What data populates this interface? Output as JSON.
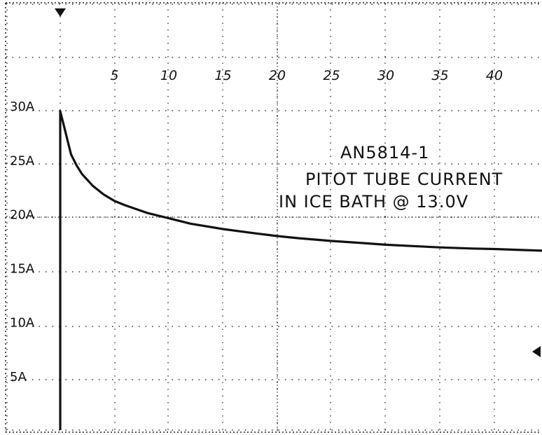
{
  "chart_data": {
    "type": "line",
    "annotation": {
      "line1": "AN5814-1",
      "line2": "PITOT TUBE CURRENT",
      "line3": "IN ICE BATH @ 13.0V"
    },
    "x_ticks": [
      "5",
      "10",
      "15",
      "20",
      "25",
      "30",
      "35",
      "40"
    ],
    "y_ticks": [
      "30A",
      "25A",
      "20A",
      "15A",
      "10A",
      "5A"
    ],
    "ylim": [
      0,
      35
    ],
    "xlim": [
      -1.25,
      45
    ],
    "grid": true,
    "series": [
      {
        "x": [
          0,
          0,
          0.25,
          0.5,
          0.75,
          1,
          1.5,
          2,
          3,
          4,
          5,
          6,
          8,
          10,
          12,
          15,
          18,
          20,
          22,
          25,
          28,
          30,
          33,
          35,
          38,
          40,
          43,
          44.5
        ],
        "y": [
          0,
          29.5,
          28.5,
          27.5,
          26.5,
          25.5,
          24.5,
          23.7,
          22.6,
          21.8,
          21.2,
          20.8,
          20.1,
          19.6,
          19.1,
          18.6,
          18.2,
          17.95,
          17.75,
          17.5,
          17.3,
          17.15,
          17.0,
          16.9,
          16.8,
          16.75,
          16.65,
          16.6
        ]
      }
    ]
  }
}
